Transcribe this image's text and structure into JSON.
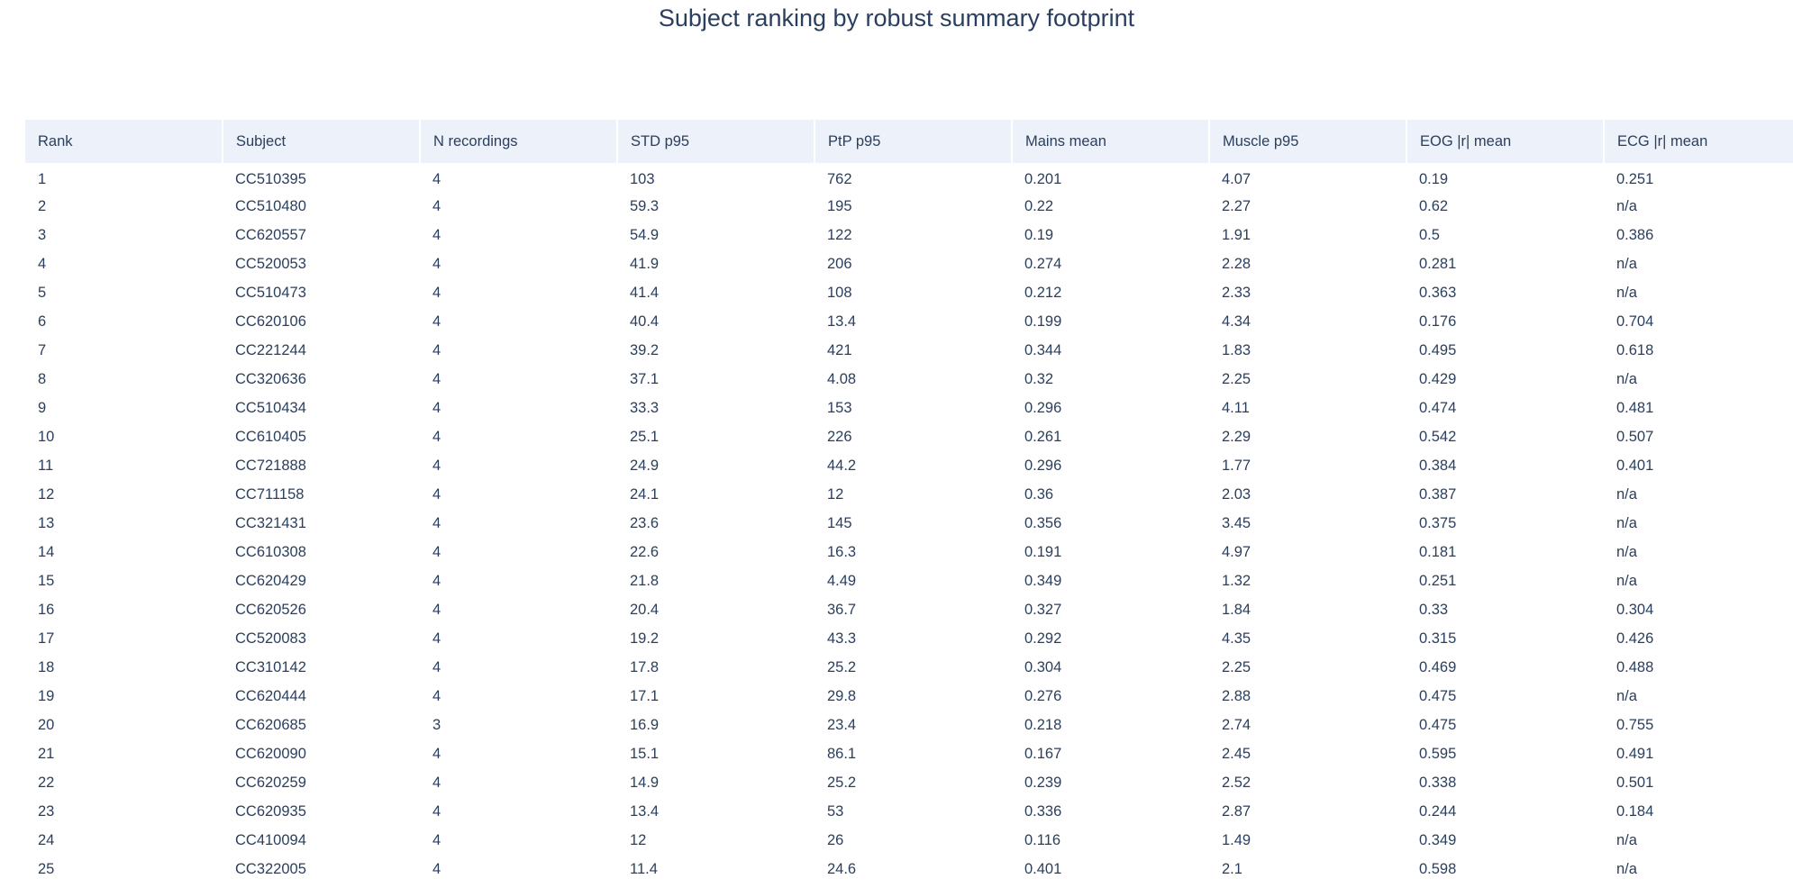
{
  "chart_data": {
    "type": "table",
    "title": "Subject ranking by robust summary footprint",
    "columns": [
      "Rank",
      "Subject",
      "N recordings",
      "STD p95",
      "PtP p95",
      "Mains mean",
      "Muscle p95",
      "EOG |r| mean",
      "ECG |r| mean"
    ],
    "rows": [
      [
        "1",
        "CC510395",
        "4",
        "103",
        "762",
        "0.201",
        "4.07",
        "0.19",
        "0.251"
      ],
      [
        "2",
        "CC510480",
        "4",
        "59.3",
        "195",
        "0.22",
        "2.27",
        "0.62",
        "n/a"
      ],
      [
        "3",
        "CC620557",
        "4",
        "54.9",
        "122",
        "0.19",
        "1.91",
        "0.5",
        "0.386"
      ],
      [
        "4",
        "CC520053",
        "4",
        "41.9",
        "206",
        "0.274",
        "2.28",
        "0.281",
        "n/a"
      ],
      [
        "5",
        "CC510473",
        "4",
        "41.4",
        "108",
        "0.212",
        "2.33",
        "0.363",
        "n/a"
      ],
      [
        "6",
        "CC620106",
        "4",
        "40.4",
        "13.4",
        "0.199",
        "4.34",
        "0.176",
        "0.704"
      ],
      [
        "7",
        "CC221244",
        "4",
        "39.2",
        "421",
        "0.344",
        "1.83",
        "0.495",
        "0.618"
      ],
      [
        "8",
        "CC320636",
        "4",
        "37.1",
        "4.08",
        "0.32",
        "2.25",
        "0.429",
        "n/a"
      ],
      [
        "9",
        "CC510434",
        "4",
        "33.3",
        "153",
        "0.296",
        "4.11",
        "0.474",
        "0.481"
      ],
      [
        "10",
        "CC610405",
        "4",
        "25.1",
        "226",
        "0.261",
        "2.29",
        "0.542",
        "0.507"
      ],
      [
        "11",
        "CC721888",
        "4",
        "24.9",
        "44.2",
        "0.296",
        "1.77",
        "0.384",
        "0.401"
      ],
      [
        "12",
        "CC711158",
        "4",
        "24.1",
        "12",
        "0.36",
        "2.03",
        "0.387",
        "n/a"
      ],
      [
        "13",
        "CC321431",
        "4",
        "23.6",
        "145",
        "0.356",
        "3.45",
        "0.375",
        "n/a"
      ],
      [
        "14",
        "CC610308",
        "4",
        "22.6",
        "16.3",
        "0.191",
        "4.97",
        "0.181",
        "n/a"
      ],
      [
        "15",
        "CC620429",
        "4",
        "21.8",
        "4.49",
        "0.349",
        "1.32",
        "0.251",
        "n/a"
      ],
      [
        "16",
        "CC620526",
        "4",
        "20.4",
        "36.7",
        "0.327",
        "1.84",
        "0.33",
        "0.304"
      ],
      [
        "17",
        "CC520083",
        "4",
        "19.2",
        "43.3",
        "0.292",
        "4.35",
        "0.315",
        "0.426"
      ],
      [
        "18",
        "CC310142",
        "4",
        "17.8",
        "25.2",
        "0.304",
        "2.25",
        "0.469",
        "0.488"
      ],
      [
        "19",
        "CC620444",
        "4",
        "17.1",
        "29.8",
        "0.276",
        "2.88",
        "0.475",
        "n/a"
      ],
      [
        "20",
        "CC620685",
        "3",
        "16.9",
        "23.4",
        "0.218",
        "2.74",
        "0.475",
        "0.755"
      ],
      [
        "21",
        "CC620090",
        "4",
        "15.1",
        "86.1",
        "0.167",
        "2.45",
        "0.595",
        "0.491"
      ],
      [
        "22",
        "CC620259",
        "4",
        "14.9",
        "25.2",
        "0.239",
        "2.52",
        "0.338",
        "0.501"
      ],
      [
        "23",
        "CC620935",
        "4",
        "13.4",
        "53",
        "0.336",
        "2.87",
        "0.244",
        "0.184"
      ],
      [
        "24",
        "CC410094",
        "4",
        "12",
        "26",
        "0.116",
        "1.49",
        "0.349",
        "n/a"
      ],
      [
        "25",
        "CC322005",
        "4",
        "11.4",
        "24.6",
        "0.401",
        "2.1",
        "0.598",
        "n/a"
      ]
    ],
    "layout_hints": {
      "header_fill": "#edf1f9",
      "cell_fill": "#ffffff",
      "text_color": "#2a3f5f",
      "title_position": "top-center",
      "grid": "off",
      "last_row_clipped": true
    }
  }
}
